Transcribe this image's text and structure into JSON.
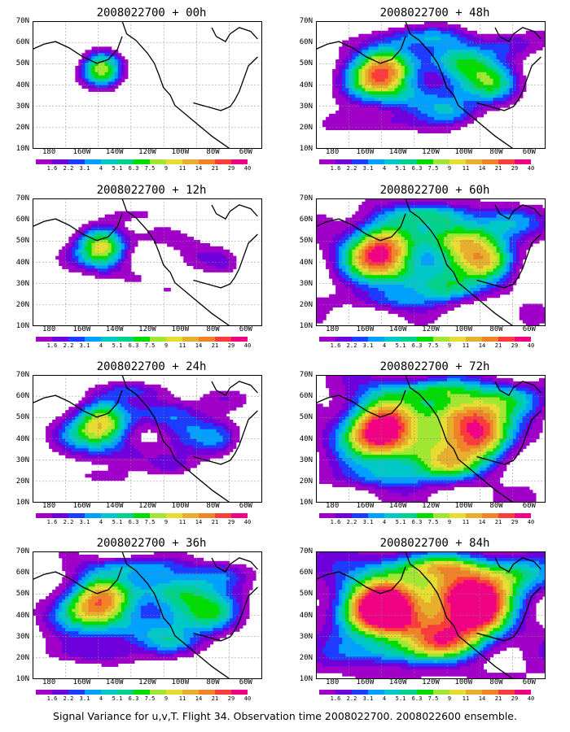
{
  "panels": [
    {
      "title": "2008022700 + 00h",
      "intensity": 0.15
    },
    {
      "title": "2008022700 + 12h",
      "intensity": 0.28
    },
    {
      "title": "2008022700 + 24h",
      "intensity": 0.4
    },
    {
      "title": "2008022700 + 36h",
      "intensity": 0.55
    },
    {
      "title": "2008022700 + 48h",
      "intensity": 0.52
    },
    {
      "title": "2008022700 + 60h",
      "intensity": 0.62
    },
    {
      "title": "2008022700 + 72h",
      "intensity": 0.72
    },
    {
      "title": "2008022700 + 84h",
      "intensity": 0.82
    }
  ],
  "axes": {
    "lat_labels": [
      "70N",
      "60N",
      "50N",
      "40N",
      "30N",
      "20N",
      "10N"
    ],
    "lon_labels": [
      "180",
      "160W",
      "140W",
      "120W",
      "100W",
      "80W",
      "60W"
    ]
  },
  "colorbar": {
    "labels": [
      "1.6",
      "2.2",
      "3.1",
      "4",
      "5.1",
      "6.3",
      "7.5",
      "9",
      "11",
      "14",
      "21",
      "29",
      "40"
    ],
    "colors": [
      "#a000c8",
      "#6e00dc",
      "#1e3cff",
      "#00a0ff",
      "#00c8c8",
      "#00d28c",
      "#00dc00",
      "#a0e632",
      "#e6dc32",
      "#e6af2d",
      "#f08228",
      "#fa3c3c",
      "#f00082"
    ]
  },
  "caption": "Signal Variance for u,v,T. Flight 34. Observation time 2008022700. 2008022600 ensemble."
}
